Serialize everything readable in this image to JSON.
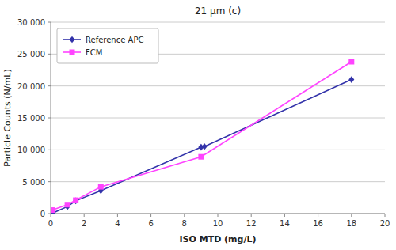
{
  "chart_data": {
    "type": "line",
    "title": "21 μm (c)",
    "xlabel": "ISO MTD (mg/L)",
    "ylabel": "Particle Counts (N/mL)",
    "series": [
      {
        "name": "Reference APC",
        "color": "#3333AA",
        "marker": "diamond",
        "x": [
          0.1,
          1.0,
          1.5,
          3.0,
          9.0,
          9.2,
          18.0
        ],
        "values": [
          50,
          1100,
          2000,
          3600,
          10400,
          10500,
          21000
        ]
      },
      {
        "name": "FCM",
        "color": "#FF44FF",
        "marker": "square",
        "x": [
          0.1,
          1.0,
          1.5,
          3.0,
          9.0,
          18.0
        ],
        "values": [
          550,
          1400,
          2100,
          4200,
          8900,
          23800
        ]
      }
    ],
    "xlim": [
      0,
      20
    ],
    "ylim": [
      0,
      30000
    ],
    "xticks": [
      0,
      2,
      4,
      6,
      8,
      10,
      12,
      14,
      16,
      18,
      20
    ],
    "yticks": [
      0,
      {
        "value": 5000,
        "label": "5 000"
      },
      {
        "value": 10000,
        "label": "10 000"
      },
      {
        "value": 15000,
        "label": "15 000"
      },
      {
        "value": 20000,
        "label": "20 000"
      },
      {
        "value": 25000,
        "label": "25 000"
      },
      {
        "value": 30000,
        "label": "30 000"
      }
    ],
    "grid": "y",
    "legend": "upper left"
  }
}
